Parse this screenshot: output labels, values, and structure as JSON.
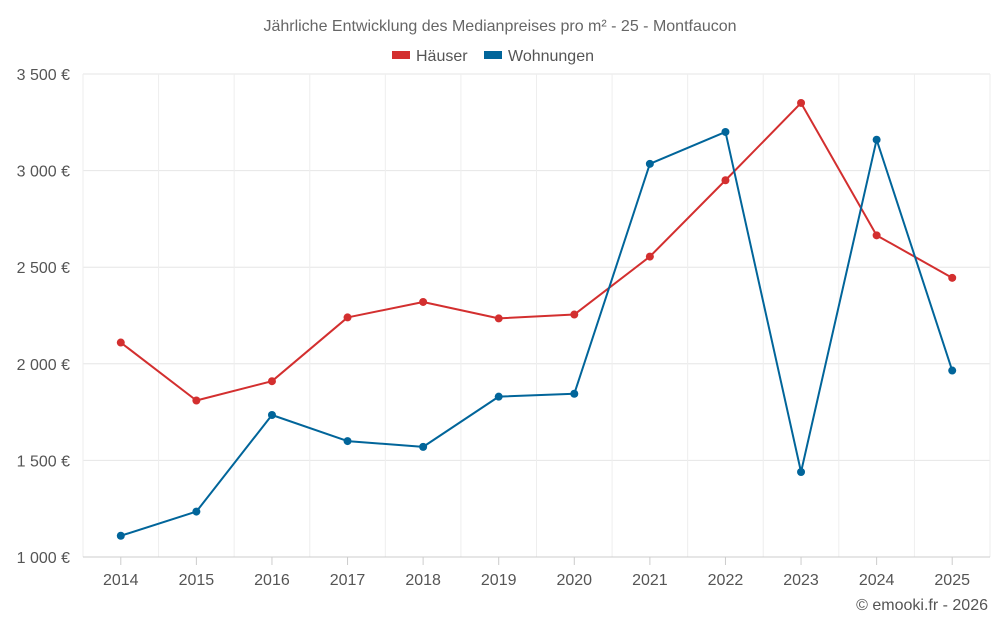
{
  "chart_data": {
    "type": "line",
    "title": "Jährliche Entwicklung des Medianpreises pro m² - 25 - Montfaucon",
    "categories": [
      "2014",
      "2015",
      "2016",
      "2017",
      "2018",
      "2019",
      "2020",
      "2021",
      "2022",
      "2023",
      "2024",
      "2025"
    ],
    "series": [
      {
        "name": "Häuser",
        "color": "#d32f2f",
        "values": [
          2110,
          1810,
          1910,
          2240,
          2320,
          2235,
          2255,
          2555,
          2950,
          3350,
          2665,
          2445
        ]
      },
      {
        "name": "Wohnungen",
        "color": "#01659a",
        "values": [
          1110,
          1235,
          1735,
          1600,
          1570,
          1830,
          1845,
          3035,
          3200,
          1440,
          3160,
          1965
        ]
      }
    ],
    "yticks": [
      1000,
      1500,
      2000,
      2500,
      3000,
      3500
    ],
    "ytick_labels": [
      "1 000 €",
      "1 500 €",
      "2 000 €",
      "2 500 €",
      "3 000 €",
      "3 500 €"
    ],
    "ylim": [
      1000,
      3500
    ],
    "legend_position": "top-center",
    "grid": true,
    "credit": "© emooki.fr - 2026"
  }
}
